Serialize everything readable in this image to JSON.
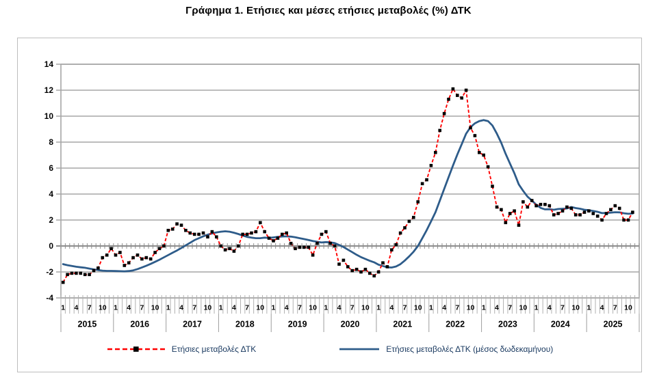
{
  "title": "Γράφημα 1. Ετήσιες και μέσες ετήσιες μεταβολές (%) ΔΤΚ",
  "legend": {
    "series1": "Ετήσιες μεταβολές ΔΤΚ",
    "series2": "Ετήσιες μεταβολές ΔΤΚ (μέσος δωδεκαμήνου)"
  },
  "colors": {
    "annual_line": "#FF0000",
    "annual_marker": "#000000",
    "average_line": "#2E5C8A",
    "gridline": "#a6a6a6",
    "zero_axis": "#8c8c8c",
    "legend_text": "#17375E"
  },
  "chart_data": {
    "type": "line",
    "title": "Γράφημα 1. Ετήσιες και μέσες ετήσιες μεταβολές (%) ΔΤΚ",
    "xlabel": "",
    "ylabel": "",
    "ylim": [
      -4,
      14
    ],
    "y_ticks": [
      14,
      12,
      10,
      8,
      6,
      4,
      2,
      0,
      -2,
      -4
    ],
    "grid": true,
    "legend_position": "bottom",
    "x_years": [
      2015,
      2016,
      2017,
      2018,
      2019,
      2020,
      2021,
      2022,
      2023,
      2024,
      2025
    ],
    "month_tick_labels": [
      "1",
      "4",
      "7",
      "10"
    ],
    "start_month": "2015-01",
    "end_month": "2025-11",
    "series": [
      {
        "name": "Ετήσιες μεταβολές ΔΤΚ",
        "style": "dashed-with-square-markers",
        "color": "#FF0000",
        "marker_color": "#000000",
        "values": [
          -2.8,
          -2.2,
          -2.1,
          -2.1,
          -2.1,
          -2.2,
          -2.2,
          -1.9,
          -1.7,
          -0.9,
          -0.7,
          -0.2,
          -0.7,
          -0.5,
          -1.5,
          -1.3,
          -0.9,
          -0.7,
          -1.0,
          -0.9,
          -1.0,
          -0.5,
          -0.2,
          0.0,
          1.2,
          1.3,
          1.7,
          1.6,
          1.2,
          1.0,
          0.9,
          0.9,
          1.0,
          0.7,
          1.1,
          0.7,
          0.0,
          -0.3,
          -0.2,
          -0.4,
          0.0,
          0.9,
          0.9,
          1.0,
          1.1,
          1.8,
          1.1,
          0.6,
          0.4,
          0.6,
          0.9,
          1.0,
          0.2,
          -0.2,
          -0.1,
          -0.1,
          -0.1,
          -0.7,
          0.2,
          0.9,
          1.1,
          0.2,
          0.0,
          -1.4,
          -1.1,
          -1.6,
          -1.9,
          -1.8,
          -2.0,
          -1.8,
          -2.1,
          -2.3,
          -2.0,
          -1.3,
          -1.6,
          -0.3,
          0.1,
          1.0,
          1.4,
          1.9,
          2.2,
          3.4,
          4.8,
          5.1,
          6.2,
          7.2,
          8.9,
          10.2,
          11.3,
          12.1,
          11.6,
          11.4,
          12.0,
          9.1,
          8.5,
          7.2,
          7.0,
          6.1,
          4.6,
          3.0,
          2.8,
          1.8,
          2.5,
          2.7,
          1.6,
          3.4,
          3.0,
          3.5,
          3.1,
          3.2,
          3.2,
          3.1,
          2.4,
          2.5,
          2.7,
          3.0,
          2.9,
          2.4,
          2.4,
          2.6,
          2.7,
          2.5,
          2.3,
          2.0,
          2.5,
          2.8,
          3.1,
          2.9,
          2.0,
          2.0,
          2.6
        ]
      },
      {
        "name": "Ετήσιες μεταβολές ΔΤΚ (μέσος δωδεκαμήνου)",
        "style": "solid",
        "color": "#2E5C8A",
        "values": [
          -1.4,
          -1.48,
          -1.54,
          -1.6,
          -1.64,
          -1.68,
          -1.74,
          -1.8,
          -1.86,
          -1.9,
          -1.92,
          -1.92,
          -1.93,
          -1.94,
          -1.95,
          -1.93,
          -1.88,
          -1.78,
          -1.65,
          -1.52,
          -1.38,
          -1.22,
          -1.06,
          -0.88,
          -0.7,
          -0.52,
          -0.35,
          -0.15,
          0.05,
          0.25,
          0.45,
          0.6,
          0.75,
          0.87,
          0.97,
          1.05,
          1.1,
          1.13,
          1.1,
          1.02,
          0.92,
          0.8,
          0.7,
          0.64,
          0.6,
          0.6,
          0.64,
          0.62,
          0.66,
          0.7,
          0.73,
          0.74,
          0.72,
          0.67,
          0.6,
          0.53,
          0.46,
          0.38,
          0.32,
          0.27,
          0.3,
          0.28,
          0.22,
          0.08,
          -0.08,
          -0.28,
          -0.48,
          -0.68,
          -0.86,
          -1.0,
          -1.14,
          -1.26,
          -1.44,
          -1.54,
          -1.64,
          -1.66,
          -1.58,
          -1.4,
          -1.12,
          -0.8,
          -0.44,
          0.0,
          0.6,
          1.22,
          1.9,
          2.6,
          3.5,
          4.4,
          5.3,
          6.2,
          7.05,
          7.85,
          8.65,
          9.15,
          9.45,
          9.62,
          9.7,
          9.62,
          9.28,
          8.65,
          7.95,
          7.1,
          6.35,
          5.6,
          4.75,
          4.25,
          3.8,
          3.5,
          3.18,
          2.93,
          2.82,
          2.83,
          2.79,
          2.85,
          2.87,
          2.89,
          3.0,
          2.92,
          2.87,
          2.79,
          2.76,
          2.7,
          2.63,
          2.53,
          2.54,
          2.57,
          2.6,
          2.59,
          2.52,
          2.48,
          2.5
        ]
      }
    ]
  }
}
